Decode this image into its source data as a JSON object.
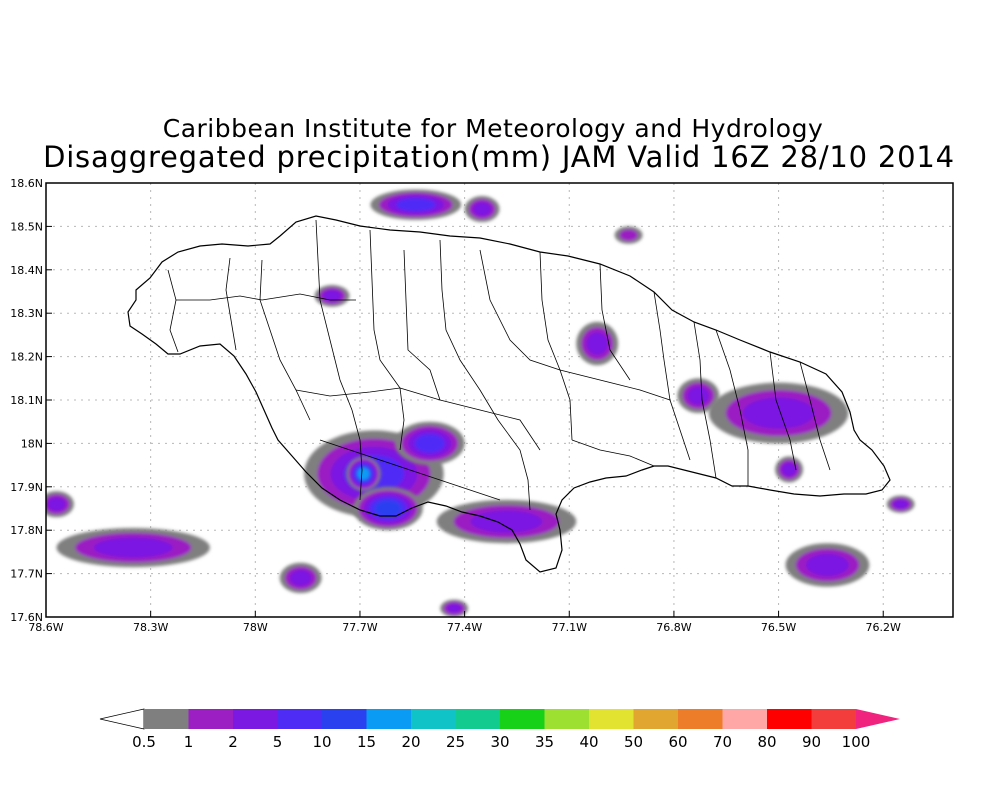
{
  "header": {
    "title": "Caribbean Institute for Meteorology and Hydrology",
    "subtitle": "Disaggregated precipitation(mm) JAM Valid 16Z 28/10 2014"
  },
  "map": {
    "region": "Jamaica",
    "lon_range": [
      -78.6,
      -76.0
    ],
    "lat_range": [
      17.6,
      18.6
    ],
    "grid": true,
    "x_ticks": [
      {
        "value": -78.6,
        "label": "78.6W"
      },
      {
        "value": -78.3,
        "label": "78.3W"
      },
      {
        "value": -78.0,
        "label": "78W"
      },
      {
        "value": -77.7,
        "label": "77.7W"
      },
      {
        "value": -77.4,
        "label": "77.4W"
      },
      {
        "value": -77.1,
        "label": "77.1W"
      },
      {
        "value": -76.8,
        "label": "76.8W"
      },
      {
        "value": -76.5,
        "label": "76.5W"
      },
      {
        "value": -76.2,
        "label": "76.2W"
      }
    ],
    "y_ticks": [
      {
        "value": 17.6,
        "label": "17.6N"
      },
      {
        "value": 17.7,
        "label": "17.7N"
      },
      {
        "value": 17.8,
        "label": "17.8N"
      },
      {
        "value": 17.9,
        "label": "17.9N"
      },
      {
        "value": 18.0,
        "label": "18N"
      },
      {
        "value": 18.1,
        "label": "18.1N"
      },
      {
        "value": 18.2,
        "label": "18.2N"
      },
      {
        "value": 18.3,
        "label": "18.3N"
      },
      {
        "value": 18.4,
        "label": "18.4N"
      },
      {
        "value": 18.5,
        "label": "18.5N"
      },
      {
        "value": 18.6,
        "label": "18.6N"
      }
    ],
    "precip_areas": [
      {
        "lon": -77.54,
        "lat": 18.55,
        "rlon": 0.13,
        "rlat": 0.035,
        "level": 5
      },
      {
        "lon": -77.35,
        "lat": 18.54,
        "rlon": 0.05,
        "rlat": 0.03,
        "level": 2
      },
      {
        "lon": -76.93,
        "lat": 18.48,
        "rlon": 0.04,
        "rlat": 0.02,
        "level": 1
      },
      {
        "lon": -77.78,
        "lat": 18.34,
        "rlon": 0.05,
        "rlat": 0.025,
        "level": 2
      },
      {
        "lon": -77.02,
        "lat": 18.23,
        "rlon": 0.06,
        "rlat": 0.05,
        "level": 2
      },
      {
        "lon": -76.73,
        "lat": 18.11,
        "rlon": 0.06,
        "rlat": 0.04,
        "level": 2
      },
      {
        "lon": -76.5,
        "lat": 18.07,
        "rlon": 0.2,
        "rlat": 0.07,
        "level": 2
      },
      {
        "lon": -76.47,
        "lat": 17.94,
        "rlon": 0.04,
        "rlat": 0.03,
        "level": 2
      },
      {
        "lon": -77.66,
        "lat": 17.93,
        "rlon": 0.2,
        "rlat": 0.1,
        "level": 5
      },
      {
        "lon": -77.62,
        "lat": 17.85,
        "rlon": 0.1,
        "rlat": 0.05,
        "level": 10
      },
      {
        "lon": -77.69,
        "lat": 17.93,
        "rlon": 0.05,
        "rlat": 0.04,
        "level": 15
      },
      {
        "lon": -77.5,
        "lat": 18.0,
        "rlon": 0.1,
        "rlat": 0.05,
        "level": 5
      },
      {
        "lon": -77.28,
        "lat": 17.82,
        "rlon": 0.2,
        "rlat": 0.05,
        "level": 2
      },
      {
        "lon": -78.35,
        "lat": 17.76,
        "rlon": 0.22,
        "rlat": 0.045,
        "level": 2
      },
      {
        "lon": -78.57,
        "lat": 17.86,
        "rlon": 0.05,
        "rlat": 0.03,
        "level": 2
      },
      {
        "lon": -77.87,
        "lat": 17.69,
        "rlon": 0.06,
        "rlat": 0.035,
        "level": 2
      },
      {
        "lon": -77.43,
        "lat": 17.62,
        "rlon": 0.04,
        "rlat": 0.02,
        "level": 2
      },
      {
        "lon": -76.36,
        "lat": 17.72,
        "rlon": 0.12,
        "rlat": 0.05,
        "level": 2
      },
      {
        "lon": -76.15,
        "lat": 17.86,
        "rlon": 0.04,
        "rlat": 0.02,
        "level": 2
      }
    ],
    "colors": {
      "coast": "#000000",
      "grid": "#b8b8b8"
    }
  },
  "colorbar": {
    "labels": [
      "0.5",
      "1",
      "2",
      "5",
      "10",
      "15",
      "20",
      "25",
      "30",
      "35",
      "40",
      "50",
      "60",
      "70",
      "80",
      "90",
      "100"
    ],
    "colors": [
      "#7f7f7f",
      "#9b1fc3",
      "#7b18e2",
      "#4f2bf6",
      "#2a41f0",
      "#0a9cf5",
      "#10c3c6",
      "#11cc8e",
      "#17d018",
      "#9ee032",
      "#e2e231",
      "#e1a630",
      "#ee7d2a",
      "#ffa6a6",
      "#ff0000",
      "#f33d3d"
    ],
    "under_color": "#ffffff",
    "over_color": "#f0237f"
  }
}
